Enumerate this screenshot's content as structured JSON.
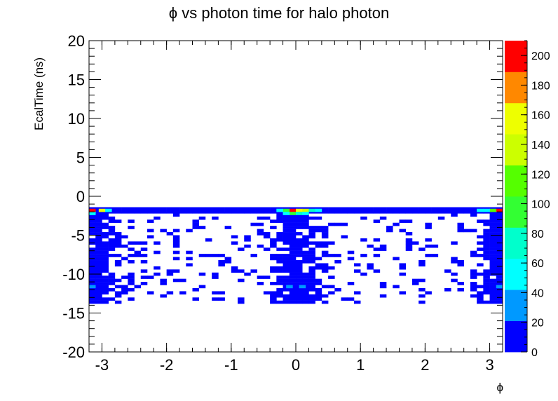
{
  "chart_data": {
    "type": "heatmap",
    "title": "ϕ vs photon time for halo photon",
    "xlabel": "ϕ",
    "ylabel": "EcalTime (ns)",
    "xlim": [
      -3.2,
      3.2
    ],
    "ylim": [
      -20,
      20
    ],
    "x_ticks": [
      -3,
      -2,
      -1,
      0,
      1,
      2,
      3
    ],
    "y_ticks": [
      -20,
      -15,
      -10,
      -5,
      0,
      5,
      10,
      15,
      20
    ],
    "colorbar": {
      "range": [
        0,
        210
      ],
      "ticks": [
        0,
        20,
        40,
        60,
        80,
        100,
        120,
        140,
        160,
        180,
        200
      ],
      "bands": [
        {
          "from": 0,
          "to": 21,
          "color": "#0000ff"
        },
        {
          "from": 21,
          "to": 42,
          "color": "#0099ff"
        },
        {
          "from": 42,
          "to": 63,
          "color": "#00ffff"
        },
        {
          "from": 63,
          "to": 84,
          "color": "#00ffcc"
        },
        {
          "from": 84,
          "to": 105,
          "color": "#33ff33"
        },
        {
          "from": 105,
          "to": 126,
          "color": "#55ff00"
        },
        {
          "from": 126,
          "to": 147,
          "color": "#ccff00"
        },
        {
          "from": 147,
          "to": 168,
          "color": "#eeff00"
        },
        {
          "from": 168,
          "to": 189,
          "color": "#ff8800"
        },
        {
          "from": 189,
          "to": 210,
          "color": "#ff0000"
        }
      ]
    },
    "cells": [
      {
        "x": -3.15,
        "y": -1.8,
        "v": 200
      },
      {
        "x": -3.0,
        "y": -1.8,
        "v": 150
      },
      {
        "x": -2.9,
        "y": -1.8,
        "v": 60
      },
      {
        "x": -3.15,
        "y": -2.2,
        "v": 45
      },
      {
        "x": -0.05,
        "y": -1.8,
        "v": 195
      },
      {
        "x": 0.05,
        "y": -1.8,
        "v": 165
      },
      {
        "x": 0.15,
        "y": -1.8,
        "v": 130
      },
      {
        "x": -0.15,
        "y": -1.8,
        "v": 100
      },
      {
        "x": 0.25,
        "y": -1.8,
        "v": 75
      },
      {
        "x": -0.25,
        "y": -1.8,
        "v": 55
      },
      {
        "x": 0.35,
        "y": -1.8,
        "v": 45
      },
      {
        "x": -0.05,
        "y": -2.2,
        "v": 90
      },
      {
        "x": 0.05,
        "y": -2.2,
        "v": 80
      },
      {
        "x": -0.15,
        "y": -2.2,
        "v": 55
      },
      {
        "x": 0.15,
        "y": -2.2,
        "v": 50
      },
      {
        "x": 3.15,
        "y": -1.8,
        "v": 200
      },
      {
        "x": 3.05,
        "y": -1.8,
        "v": 120
      },
      {
        "x": 2.95,
        "y": -1.8,
        "v": 55
      },
      {
        "x": 2.85,
        "y": -1.8,
        "v": 45
      },
      {
        "x": -3.15,
        "y": -11.6,
        "v": 30
      },
      {
        "x": -0.1,
        "y": -11.6,
        "v": 30
      },
      {
        "x": 0.1,
        "y": -11.6,
        "v": 25
      },
      {
        "x": 3.15,
        "y": -11.6,
        "v": 30
      }
    ]
  }
}
